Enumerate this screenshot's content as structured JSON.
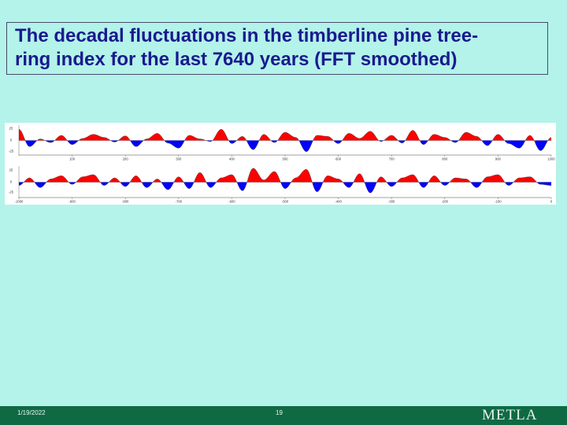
{
  "slide": {
    "title": "The decadal fluctuations in the timberline pine tree-\nring index for the last 7640 years (FFT smoothed)",
    "footer_date": "1/19/2022",
    "footer_page": "19",
    "footer_logo": "METLA"
  },
  "colors": {
    "background": "#b3f3ea",
    "title": "#1a1a8e",
    "positive": "#ff0000",
    "negative": "#0000ff",
    "footer": "#0f6a44"
  },
  "chart_data": [
    {
      "type": "area",
      "panel": "top",
      "title": "",
      "xlabel": "",
      "ylabel": "",
      "xlim": [
        0,
        1000
      ],
      "ylim": [
        -30,
        30
      ],
      "y_tick_labels": [
        "25",
        "0",
        "-25"
      ],
      "x_tick_labels": [
        "100",
        "200",
        "300",
        "400",
        "500",
        "600",
        "700",
        "800",
        "900",
        "1000"
      ],
      "grid": false,
      "fill_above_zero": "red",
      "fill_below_zero": "blue",
      "series": [
        {
          "x": [
            0,
            20,
            40,
            60,
            80,
            100,
            120,
            140,
            160,
            180,
            200,
            220,
            240,
            260,
            280,
            300,
            320,
            340,
            360,
            380,
            400,
            420,
            440,
            460,
            480,
            500,
            520,
            540,
            560,
            580,
            600,
            620,
            640,
            660,
            680,
            700,
            720,
            740,
            760,
            780,
            800,
            820,
            840,
            860,
            880,
            900,
            920,
            940,
            960,
            980,
            1000
          ],
          "y": [
            22,
            -12,
            3,
            -4,
            10,
            -8,
            4,
            12,
            6,
            -3,
            9,
            -12,
            3,
            14,
            -5,
            -15,
            10,
            3,
            -2,
            22,
            -6,
            8,
            -18,
            12,
            -4,
            16,
            6,
            -22,
            10,
            8,
            -6,
            14,
            4,
            18,
            -2,
            10,
            -5,
            20,
            -8,
            12,
            6,
            -4,
            16,
            8,
            -10,
            12,
            -6,
            -15,
            10,
            -20,
            6
          ]
        }
      ]
    },
    {
      "type": "area",
      "panel": "bottom",
      "title": "",
      "xlabel": "",
      "ylabel": "",
      "xlim": [
        -1000,
        0
      ],
      "ylim": [
        -30,
        30
      ],
      "y_tick_labels": [
        "25",
        "0",
        "-25"
      ],
      "x_tick_labels": [
        "-1000",
        "-900",
        "-800",
        "-700",
        "-600",
        "-500",
        "-400",
        "-300",
        "-200",
        "-100",
        "0"
      ],
      "grid": false,
      "fill_above_zero": "red",
      "fill_below_zero": "blue",
      "series": [
        {
          "x": [
            -1000,
            -980,
            -960,
            -940,
            -920,
            -900,
            -880,
            -860,
            -840,
            -820,
            -800,
            -780,
            -760,
            -740,
            -720,
            -700,
            -680,
            -660,
            -640,
            -620,
            -600,
            -580,
            -560,
            -540,
            -520,
            -500,
            -480,
            -460,
            -440,
            -420,
            -400,
            -380,
            -360,
            -340,
            -320,
            -300,
            -280,
            -260,
            -240,
            -220,
            -200,
            -180,
            -160,
            -140,
            -120,
            -100,
            -80,
            -60,
            -40,
            -20,
            0
          ],
          "y": [
            -6,
            8,
            -10,
            6,
            12,
            -4,
            10,
            14,
            -6,
            8,
            -8,
            12,
            -10,
            6,
            -14,
            10,
            -12,
            18,
            -10,
            8,
            14,
            -16,
            26,
            4,
            20,
            -12,
            8,
            24,
            -18,
            12,
            6,
            -10,
            16,
            -20,
            10,
            -8,
            8,
            14,
            -10,
            12,
            -6,
            8,
            6,
            -10,
            10,
            14,
            -6,
            8,
            10,
            -4,
            -6
          ]
        }
      ]
    }
  ]
}
